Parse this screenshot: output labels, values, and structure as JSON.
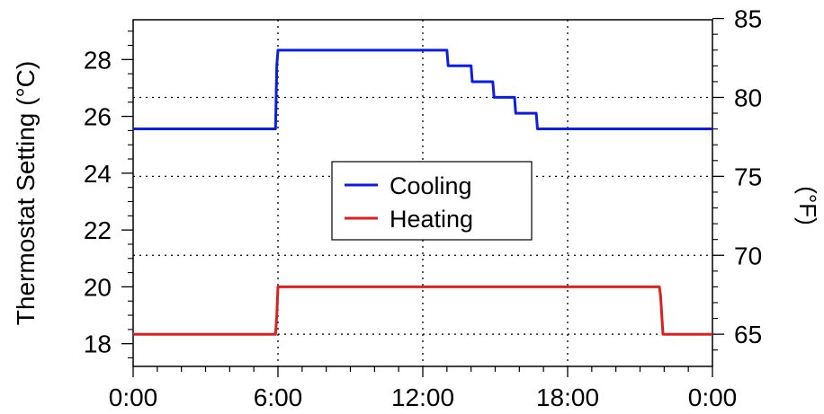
{
  "chart_data": {
    "type": "line",
    "title": "",
    "xlabel": "",
    "ylabel": "Thermostat Setting (°C)",
    "y2label": "(°F)",
    "x_ticks": [
      {
        "value": 0,
        "label": "0:00"
      },
      {
        "value": 6,
        "label": "6:00"
      },
      {
        "value": 12,
        "label": "12:00"
      },
      {
        "value": 18,
        "label": "18:00"
      },
      {
        "value": 24,
        "label": "0:00"
      }
    ],
    "xlim": [
      0,
      24
    ],
    "ylim": [
      17.2,
      29.4
    ],
    "y_ticks": [
      18,
      20,
      22,
      24,
      26,
      28
    ],
    "y2_ticks": [
      65,
      70,
      75,
      80,
      85
    ],
    "grid": {
      "x": [
        6,
        12,
        18
      ],
      "y2": [
        65,
        70,
        75,
        80
      ]
    },
    "legend": {
      "placement": "center",
      "entries": [
        "Cooling",
        "Heating"
      ]
    },
    "series": [
      {
        "name": "Cooling",
        "color": "#0a1ee6",
        "x": [
          0,
          5.9,
          5.95,
          6.0,
          13.0,
          13.05,
          14.0,
          14.05,
          14.9,
          14.95,
          15.8,
          15.85,
          16.7,
          16.75,
          24
        ],
        "y": [
          25.56,
          25.56,
          27.8,
          28.33,
          28.33,
          27.78,
          27.78,
          27.22,
          27.22,
          26.67,
          26.67,
          26.11,
          26.11,
          25.56,
          25.56
        ]
      },
      {
        "name": "Heating",
        "color": "#e01e1e",
        "x": [
          0,
          5.9,
          5.95,
          6.0,
          21.8,
          21.85,
          21.95,
          24
        ],
        "y": [
          18.33,
          18.33,
          19.0,
          20.0,
          20.0,
          19.7,
          18.33,
          18.33
        ]
      }
    ]
  }
}
